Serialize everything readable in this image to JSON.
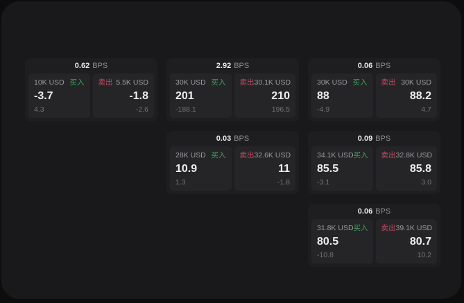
{
  "colors": {
    "page_bg": "#0d0d0e",
    "window_bg": "#19191b",
    "card_bg": "#1e1e20",
    "panel_bg": "#252528",
    "buy_green": "#3da35a",
    "sell_red": "#c2485c",
    "value_white": "#eeeeef",
    "label_gray": "#9c9ca0",
    "sub_gray": "#737377"
  },
  "labels": {
    "bps_unit": "BPS",
    "buy": "买入",
    "sell": "卖出"
  },
  "cards": [
    {
      "col": 1,
      "row": 1,
      "bps": "0.62",
      "buy": {
        "amount": "10K USD",
        "value": "-3.7",
        "sub": "4.3"
      },
      "sell": {
        "amount": "5.5K USD",
        "value": "-1.8",
        "sub": "-2.6"
      }
    },
    {
      "col": 2,
      "row": 1,
      "bps": "2.92",
      "buy": {
        "amount": "30K USD",
        "value": "201",
        "sub": "-188.1"
      },
      "sell": {
        "amount": "30.1K USD",
        "value": "210",
        "sub": "196.5"
      }
    },
    {
      "col": 3,
      "row": 1,
      "bps": "0.06",
      "buy": {
        "amount": "30K USD",
        "value": "88",
        "sub": "-4.9"
      },
      "sell": {
        "amount": "30K USD",
        "value": "88.2",
        "sub": "4.7"
      }
    },
    {
      "col": 2,
      "row": 2,
      "bps": "0.03",
      "buy": {
        "amount": "28K USD",
        "value": "10.9",
        "sub": "1.3"
      },
      "sell": {
        "amount": "32.6K USD",
        "value": "11",
        "sub": "-1.8"
      }
    },
    {
      "col": 3,
      "row": 2,
      "bps": "0.09",
      "buy": {
        "amount": "34.1K USD",
        "value": "85.5",
        "sub": "-3.1"
      },
      "sell": {
        "amount": "32.8K USD",
        "value": "85.8",
        "sub": "3.0"
      }
    },
    {
      "col": 3,
      "row": 3,
      "bps": "0.06",
      "buy": {
        "amount": "31.8K USD",
        "value": "80.5",
        "sub": "-10.8"
      },
      "sell": {
        "amount": "39.1K USD",
        "value": "80.7",
        "sub": "10.2"
      }
    }
  ]
}
